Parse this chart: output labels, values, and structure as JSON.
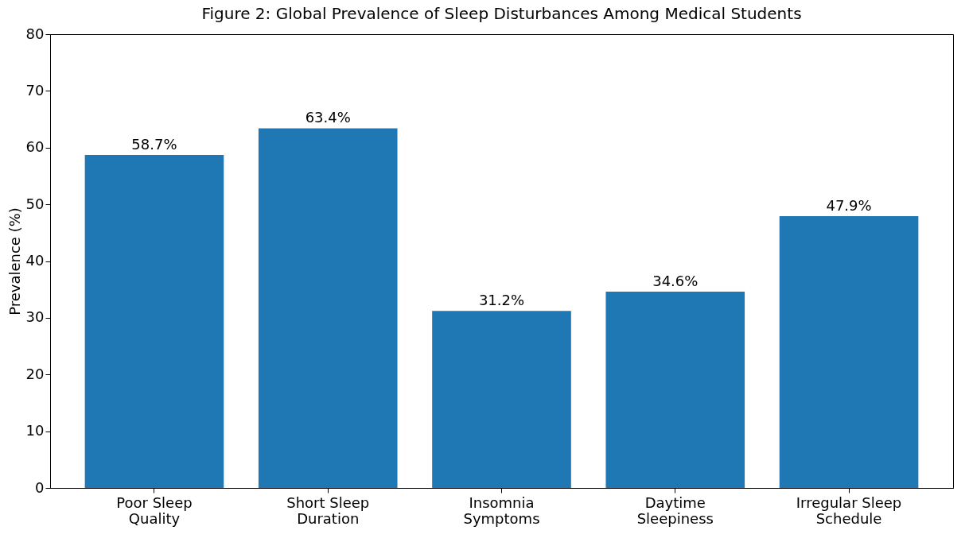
{
  "chart_data": {
    "type": "bar",
    "title": "Figure 2: Global Prevalence of Sleep Disturbances Among Medical Students",
    "ylabel": "Prevalence (%)",
    "categories": [
      "Poor Sleep Quality",
      "Short Sleep Duration",
      "Insomnia Symptoms",
      "Daytime Sleepiness",
      "Irregular Sleep Schedule"
    ],
    "values": [
      58.7,
      63.4,
      31.2,
      34.6,
      47.9
    ],
    "value_labels": [
      "58.7%",
      "63.4%",
      "31.2%",
      "34.6%",
      "47.9%"
    ],
    "color": "#1f77b4",
    "ylim": [
      0,
      80
    ],
    "yticks": [
      0,
      10,
      20,
      30,
      40,
      50,
      60,
      70,
      80
    ],
    "grid": false
  }
}
